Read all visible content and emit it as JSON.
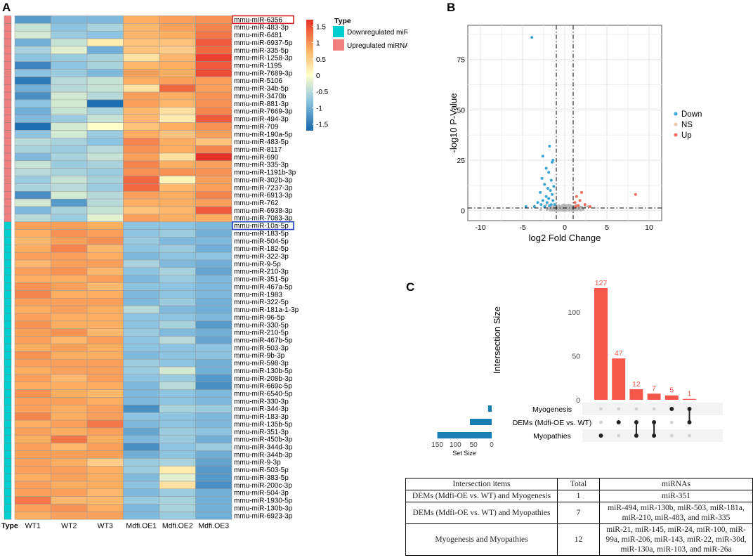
{
  "panelA": {
    "label": "A",
    "legend_title": "Type",
    "legend_items": [
      {
        "label": "Downregulated miRNA",
        "color": "#00CED1"
      },
      {
        "label": "Upregulated miRNA",
        "color": "#F08080"
      }
    ],
    "colorbar_ticks": [
      1.5,
      1,
      0.5,
      0,
      -0.5,
      -1,
      -1.5
    ],
    "colorbar_tick_labels": [
      "1.5",
      "1",
      "0.5",
      "0",
      "-0.5",
      "-1",
      "-1.5"
    ],
    "columns": [
      "WT1",
      "WT2",
      "WT3",
      "Mdfi.OE1",
      "Mdfi.OE2",
      "Mdfi.OE3"
    ],
    "type_label": "Type",
    "highlight": [
      {
        "row": "mmu-miR-6356",
        "color": "#d62020"
      },
      {
        "row": "mmu-miR-10a-5p",
        "color": "#1f3fbf"
      }
    ],
    "up_rows": [
      [
        "mmu-miR-6356",
        [
          -1.2,
          -0.9,
          -0.9,
          0.8,
          0.9,
          1.0
        ]
      ],
      [
        "mmu-miR-483-3p",
        [
          -0.4,
          -0.8,
          -0.6,
          0.7,
          0.9,
          1.1
        ]
      ],
      [
        "mmu-miR-6481",
        [
          -0.3,
          -0.7,
          -0.8,
          0.7,
          0.8,
          1.2
        ]
      ],
      [
        "mmu-miR-6937-5p",
        [
          -1.0,
          -0.4,
          0.2,
          0.6,
          0.6,
          1.4
        ]
      ],
      [
        "mmu-miR-335-5p",
        [
          -0.6,
          -0.2,
          -1.0,
          0.6,
          0.5,
          1.3
        ]
      ],
      [
        "mmu-miR-1258-3p",
        [
          -0.8,
          -0.7,
          -0.6,
          0.3,
          0.7,
          1.6
        ]
      ],
      [
        "mmu-miR-1195",
        [
          -1.4,
          -0.8,
          -0.6,
          0.7,
          0.8,
          1.4
        ]
      ],
      [
        "mmu-miR-7689-3p",
        [
          -0.8,
          -0.7,
          -0.9,
          0.9,
          0.8,
          1.5
        ]
      ],
      [
        "mmu-miR-5106",
        [
          -1.5,
          -0.5,
          -0.4,
          0.8,
          0.9,
          0.9
        ]
      ],
      [
        "mmu-miR-34b-5p",
        [
          -1.0,
          -0.5,
          -0.4,
          0.3,
          1.3,
          0.9
        ]
      ],
      [
        "mmu-miR-3470b",
        [
          -1.3,
          -0.3,
          -0.5,
          0.9,
          0.8,
          1.0
        ]
      ],
      [
        "mmu-miR-881-3p",
        [
          -0.8,
          -0.3,
          -1.6,
          0.9,
          0.7,
          1.0
        ]
      ],
      [
        "mmu-miR-7669-3p",
        [
          -1.0,
          -0.4,
          -0.6,
          0.7,
          0.3,
          1.1
        ]
      ],
      [
        "mmu-miR-494-3p",
        [
          -0.9,
          -0.7,
          -0.4,
          0.7,
          0.2,
          1.4
        ]
      ],
      [
        "mmu-miR-709",
        [
          -1.6,
          -0.3,
          0.0,
          0.6,
          0.8,
          1.0
        ]
      ],
      [
        "mmu-miR-190a-5p",
        [
          -0.8,
          -0.3,
          -0.7,
          0.8,
          0.6,
          0.9
        ]
      ],
      [
        "mmu-miR-483-5p",
        [
          -0.5,
          -0.6,
          -0.8,
          1.1,
          0.8,
          0.6
        ]
      ],
      [
        "mmu-miR-8117",
        [
          -0.6,
          -0.7,
          -0.5,
          1.0,
          0.8,
          1.1
        ]
      ],
      [
        "mmu-miR-690",
        [
          -0.9,
          -0.6,
          -0.4,
          0.9,
          0.3,
          1.7
        ]
      ],
      [
        "mmu-miR-335-3p",
        [
          -0.4,
          -0.7,
          -0.6,
          1.1,
          0.8,
          0.9
        ]
      ],
      [
        "mmu-miR-1191b-3p",
        [
          -0.5,
          -0.6,
          -0.7,
          1.0,
          1.0,
          1.0
        ]
      ],
      [
        "mmu-miR-302b-3p",
        [
          -0.7,
          -0.4,
          -0.6,
          1.3,
          0.1,
          0.9
        ]
      ],
      [
        "mmu-miR-7237-3p",
        [
          -0.6,
          -0.5,
          -0.7,
          1.3,
          0.7,
          0.9
        ]
      ],
      [
        "mmu-miR-6913-3p",
        [
          -1.3,
          -0.3,
          -0.5,
          0.9,
          0.8,
          1.1
        ]
      ],
      [
        "mmu-miR-762",
        [
          -0.3,
          -1.2,
          -0.5,
          0.8,
          0.8,
          0.9
        ]
      ],
      [
        "mmu-miR-6938-3p",
        [
          -0.9,
          -0.6,
          -0.4,
          0.6,
          0.7,
          1.4
        ]
      ],
      [
        "mmu-miR-7083-3p",
        [
          -0.5,
          -0.7,
          -0.2,
          0.9,
          0.8,
          0.8
        ]
      ]
    ],
    "down_rows": [
      [
        "mmu-miR-10a-5p",
        [
          0.9,
          0.9,
          0.8,
          -0.8,
          -0.8,
          -0.9
        ]
      ],
      [
        "mmu-miR-183-5p",
        [
          0.8,
          1.0,
          0.9,
          -0.8,
          -0.7,
          -1.0
        ]
      ],
      [
        "mmu-miR-504-5p",
        [
          0.7,
          0.9,
          1.0,
          -0.7,
          -0.9,
          -0.9
        ]
      ],
      [
        "mmu-miR-182-5p",
        [
          0.8,
          1.1,
          0.7,
          -0.8,
          -0.7,
          -1.0
        ]
      ],
      [
        "mmu-miR-322-3p",
        [
          0.9,
          0.9,
          0.8,
          -0.9,
          -0.8,
          -0.8
        ]
      ],
      [
        "mmu-miR-9-5p",
        [
          0.7,
          0.9,
          0.9,
          -0.6,
          -0.9,
          -1.0
        ]
      ],
      [
        "mmu-miR-210-3p",
        [
          0.9,
          1.0,
          0.7,
          -0.8,
          -0.6,
          -1.1
        ]
      ],
      [
        "mmu-miR-351-5p",
        [
          0.8,
          0.8,
          0.9,
          -0.9,
          -0.7,
          -0.9
        ]
      ],
      [
        "mmu-miR-467a-5p",
        [
          1.0,
          0.9,
          0.7,
          -0.8,
          -0.8,
          -0.9
        ]
      ],
      [
        "mmu-miR-1983",
        [
          1.1,
          0.8,
          0.8,
          -0.9,
          -0.8,
          -0.9
        ]
      ],
      [
        "mmu-miR-322-5p",
        [
          0.9,
          0.9,
          0.9,
          -0.9,
          -0.7,
          -1.0
        ]
      ],
      [
        "mmu-miR-181a-1-3p",
        [
          0.8,
          0.9,
          0.8,
          -0.5,
          -0.9,
          -1.0
        ]
      ],
      [
        "mmu-miR-96-5p",
        [
          0.9,
          0.8,
          0.8,
          -0.8,
          -0.8,
          -0.9
        ]
      ],
      [
        "mmu-miR-330-5p",
        [
          1.0,
          0.8,
          0.8,
          -0.8,
          -0.6,
          -1.2
        ]
      ],
      [
        "mmu-miR-210-5p",
        [
          0.9,
          1.0,
          0.7,
          -0.7,
          -0.9,
          -1.0
        ]
      ],
      [
        "mmu-miR-467b-5p",
        [
          0.9,
          0.7,
          0.9,
          -0.8,
          -0.5,
          -1.1
        ]
      ],
      [
        "mmu-miR-503-3p",
        [
          0.8,
          0.9,
          0.8,
          -0.8,
          -0.8,
          -0.8
        ]
      ],
      [
        "mmu-miR-9b-3p",
        [
          1.0,
          0.8,
          0.8,
          -0.9,
          -0.8,
          -0.8
        ]
      ],
      [
        "mmu-miR-598-3p",
        [
          0.9,
          0.9,
          0.9,
          -0.7,
          -0.8,
          -1.0
        ]
      ],
      [
        "mmu-miR-130b-5p",
        [
          0.8,
          0.9,
          0.9,
          -0.7,
          -0.3,
          -1.0
        ]
      ],
      [
        "mmu-miR-208b-3p",
        [
          0.9,
          0.7,
          0.9,
          -0.8,
          -0.7,
          -1.2
        ]
      ],
      [
        "mmu-miR-669c-5p",
        [
          0.8,
          0.8,
          0.8,
          -0.9,
          -0.5,
          -1.3
        ]
      ],
      [
        "mmu-miR-6540-5p",
        [
          1.0,
          0.8,
          0.7,
          -0.9,
          -0.8,
          -0.9
        ]
      ],
      [
        "mmu-miR-330-3p",
        [
          0.9,
          0.9,
          0.8,
          -0.9,
          -0.8,
          -0.9
        ]
      ],
      [
        "mmu-miR-344-3p",
        [
          0.9,
          0.8,
          0.9,
          -1.3,
          -0.6,
          -0.7
        ]
      ],
      [
        "mmu-miR-183-3p",
        [
          1.1,
          0.8,
          0.9,
          -0.8,
          -0.8,
          -0.9
        ]
      ],
      [
        "mmu-miR-135b-5p",
        [
          0.8,
          0.9,
          1.2,
          -0.9,
          -0.8,
          -0.9
        ]
      ],
      [
        "mmu-miR-351-3p",
        [
          0.9,
          0.8,
          0.9,
          -1.1,
          -0.7,
          -0.8
        ]
      ],
      [
        "mmu-miR-450b-3p",
        [
          0.8,
          1.2,
          0.8,
          -0.9,
          -0.7,
          -1.0
        ]
      ],
      [
        "mmu-miR-344d-3p",
        [
          0.9,
          0.7,
          0.9,
          -1.3,
          -0.8,
          -0.7
        ]
      ],
      [
        "mmu-miR-344b-3p",
        [
          0.9,
          0.9,
          0.9,
          -1.0,
          -0.8,
          -1.0
        ]
      ],
      [
        "mmu-miR-9-3p",
        [
          0.9,
          0.8,
          0.5,
          -0.7,
          -0.6,
          -1.1
        ]
      ],
      [
        "mmu-miR-503-5p",
        [
          0.9,
          0.9,
          0.8,
          -0.7,
          0.2,
          -1.2
        ]
      ],
      [
        "mmu-miR-383-5p",
        [
          0.8,
          0.9,
          0.8,
          -0.9,
          -0.2,
          -1.2
        ]
      ],
      [
        "mmu-miR-200c-3p",
        [
          0.9,
          0.8,
          0.8,
          -0.8,
          0.3,
          -1.3
        ]
      ],
      [
        "mmu-miR-504-3p",
        [
          0.9,
          0.9,
          0.7,
          -0.9,
          -0.7,
          -1.0
        ]
      ],
      [
        "mmu-miR-1930-5p",
        [
          1.2,
          0.7,
          0.7,
          -0.7,
          -0.6,
          -1.0
        ]
      ],
      [
        "mmu-miR-130b-3p",
        [
          0.9,
          1.0,
          0.8,
          -0.9,
          -0.6,
          -1.0
        ]
      ],
      [
        "mmu-miR-6923-3p",
        [
          0.8,
          0.9,
          0.9,
          -0.9,
          -0.7,
          -1.0
        ]
      ]
    ]
  },
  "panelB": {
    "label": "B",
    "xlabel": "log2 Fold Change",
    "ylabel": "-log10 P-Value",
    "xticks": [
      -10,
      -5,
      0,
      5,
      10
    ],
    "yticks": [
      0,
      25,
      50,
      75
    ],
    "legend": [
      {
        "label": "Down",
        "color": "#3aa6d6"
      },
      {
        "label": "NS",
        "color": "#e8c9a4"
      },
      {
        "label": "Up",
        "color": "#f26b5b"
      }
    ]
  },
  "panelC": {
    "label": "C",
    "ylabel": "Intersection Size",
    "bar_values": [
      127,
      47,
      12,
      7,
      5,
      1
    ],
    "bar_labels": [
      "127",
      "47",
      "12",
      "7",
      "5",
      "1"
    ],
    "yticks": [
      0,
      50,
      100
    ],
    "set_names": [
      "Myogenesis",
      "DEMs (Mdfi-OE vs. WT)",
      "Myopathies"
    ],
    "set_sizes": [
      10,
      60,
      150
    ],
    "set_ticks": [
      "150",
      "100",
      "50",
      "0"
    ],
    "set_size_label": "Set Size",
    "bar_color": "#f2574a",
    "setbar_color": "#1a7db3"
  },
  "table": {
    "headers": [
      "Intersection items",
      "Total",
      "miRNAs"
    ],
    "rows": [
      {
        "item": "DEMs (Mdfi-OE vs. WT) and Myogenesis",
        "total": "1",
        "mirnas": [
          "miR-351"
        ]
      },
      {
        "item": "DEMs (Mdfi-OE vs. WT) and Myopathies",
        "total": "7",
        "mirnas": [
          "miR-494, miR-130b, miR-503, miR-181a,",
          "miR-210, miR-483, and miR-335"
        ]
      },
      {
        "item": "Myogenesis and Myopathies",
        "total": "12",
        "mirnas": [
          "miR-21, miR-145, miR-24, miR-100, miR-",
          "99a, miR-206, miR-143, miR-22, miR-30d,",
          "miR-130a, miR-103, and miR-26a"
        ]
      }
    ]
  }
}
